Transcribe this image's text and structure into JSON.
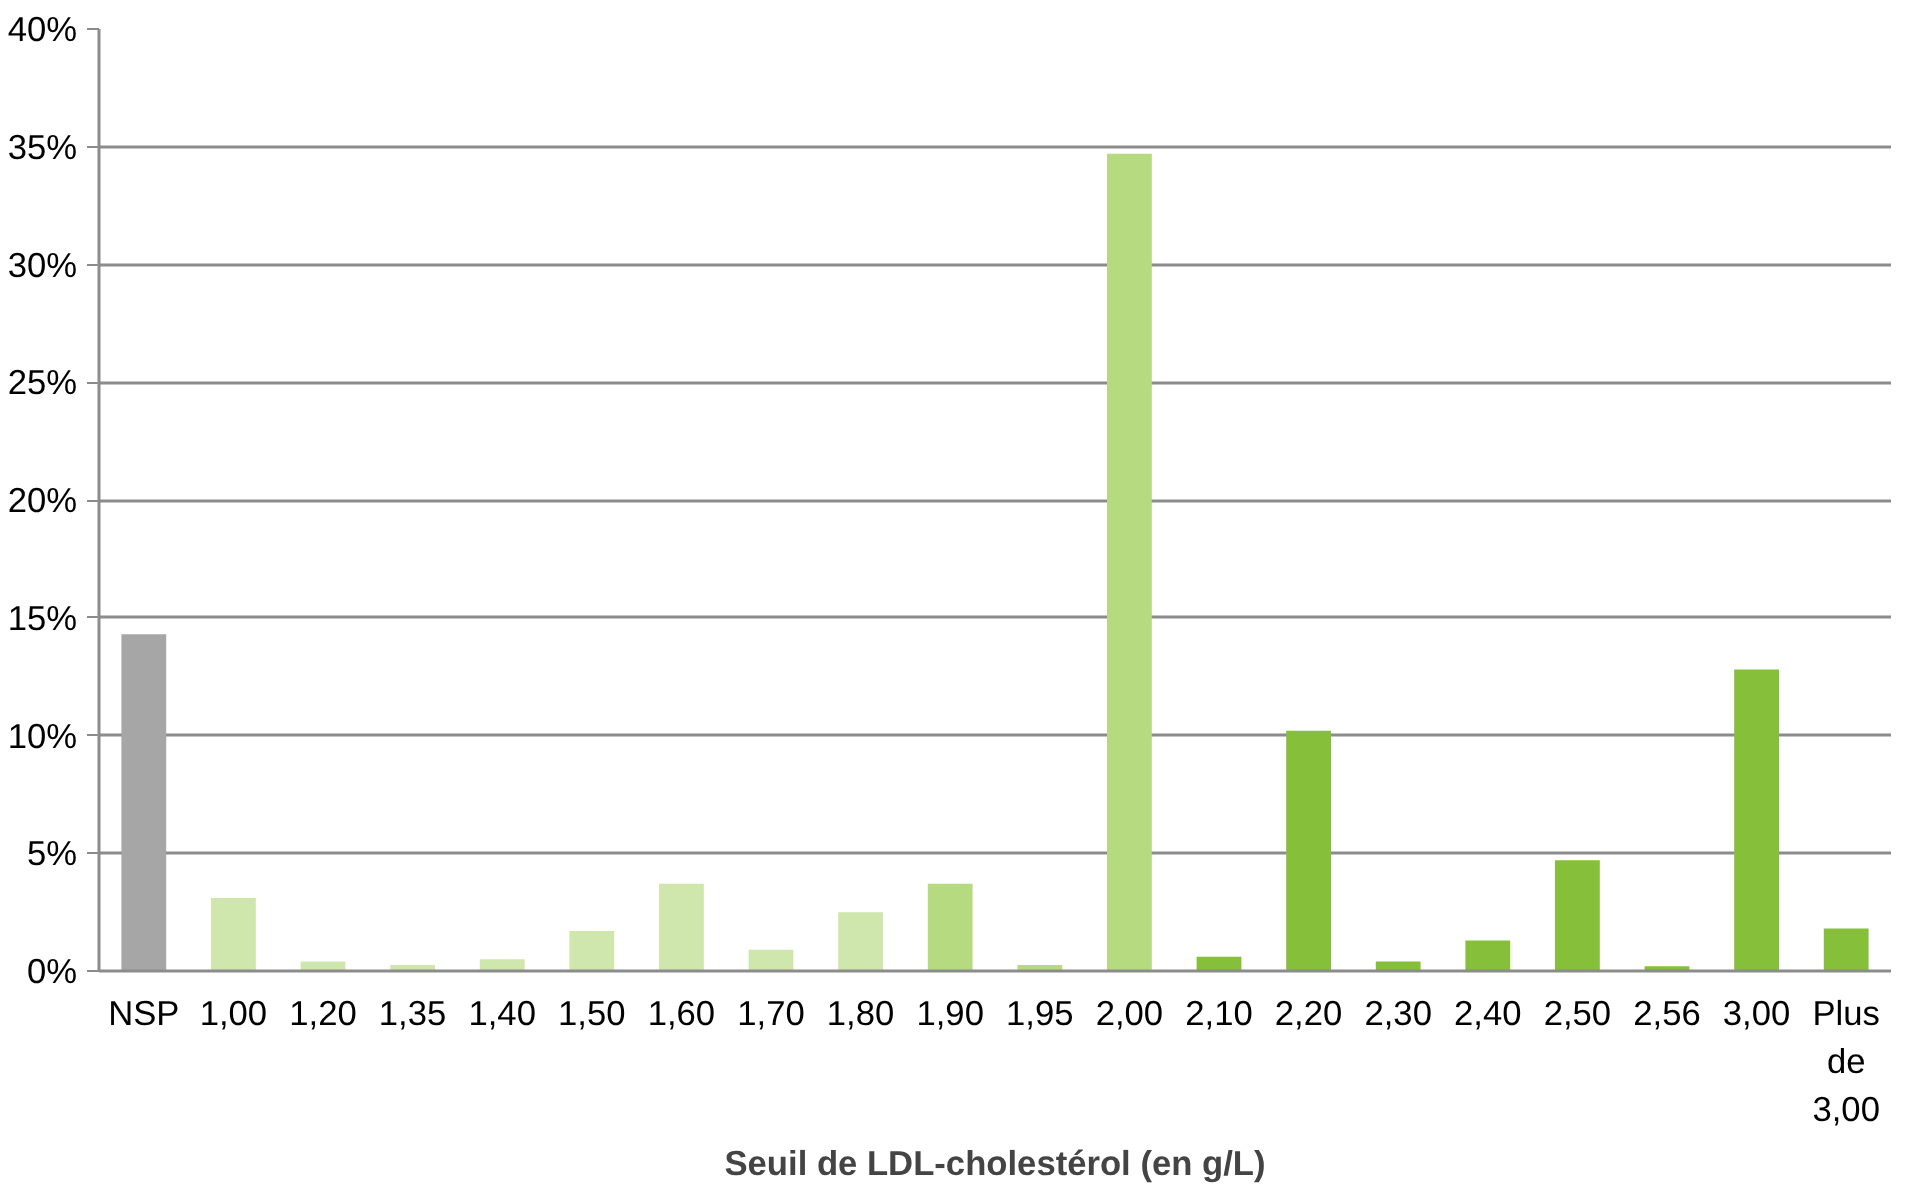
{
  "chart_data": {
    "type": "bar",
    "xlabel": "Seuil de LDL-cholestérol (en g/L)",
    "categories": [
      "NSP",
      "1,00",
      "1,20",
      "1,35",
      "1,40",
      "1,50",
      "1,60",
      "1,70",
      "1,80",
      "1,90",
      "1,95",
      "2,00",
      "2,10",
      "2,20",
      "2,30",
      "2,40",
      "2,50",
      "2,56",
      "3,00",
      "Plus de 3,00"
    ],
    "values": [
      14.3,
      3.1,
      0.4,
      0.25,
      0.5,
      1.7,
      3.7,
      0.9,
      2.5,
      3.7,
      0.25,
      34.7,
      0.6,
      10.2,
      0.4,
      1.3,
      4.7,
      0.2,
      12.8,
      1.8
    ],
    "colors": [
      "#a6a6a6",
      "#cfe6ad",
      "#cfe6ad",
      "#cfe6ad",
      "#cfe6ad",
      "#cfe6ad",
      "#cfe6ad",
      "#cfe6ad",
      "#cfe6ad",
      "#b5da7f",
      "#b5da7f",
      "#b5da7f",
      "#86bf3a",
      "#86bf3a",
      "#86bf3a",
      "#86bf3a",
      "#86bf3a",
      "#86bf3a",
      "#86bf3a",
      "#86bf3a"
    ],
    "ylim": [
      0,
      40
    ],
    "yticks": [
      {
        "value": 0,
        "label": "0%"
      },
      {
        "value": 5,
        "label": "5%"
      },
      {
        "value": 10,
        "label": "10%"
      },
      {
        "value": 15,
        "label": "15%"
      },
      {
        "value": 20,
        "label": "20%"
      },
      {
        "value": 25,
        "label": "25%"
      },
      {
        "value": 30,
        "label": "30%"
      },
      {
        "value": 35,
        "label": "35%"
      },
      {
        "value": 40,
        "label": "40%"
      }
    ],
    "grid": "y"
  }
}
